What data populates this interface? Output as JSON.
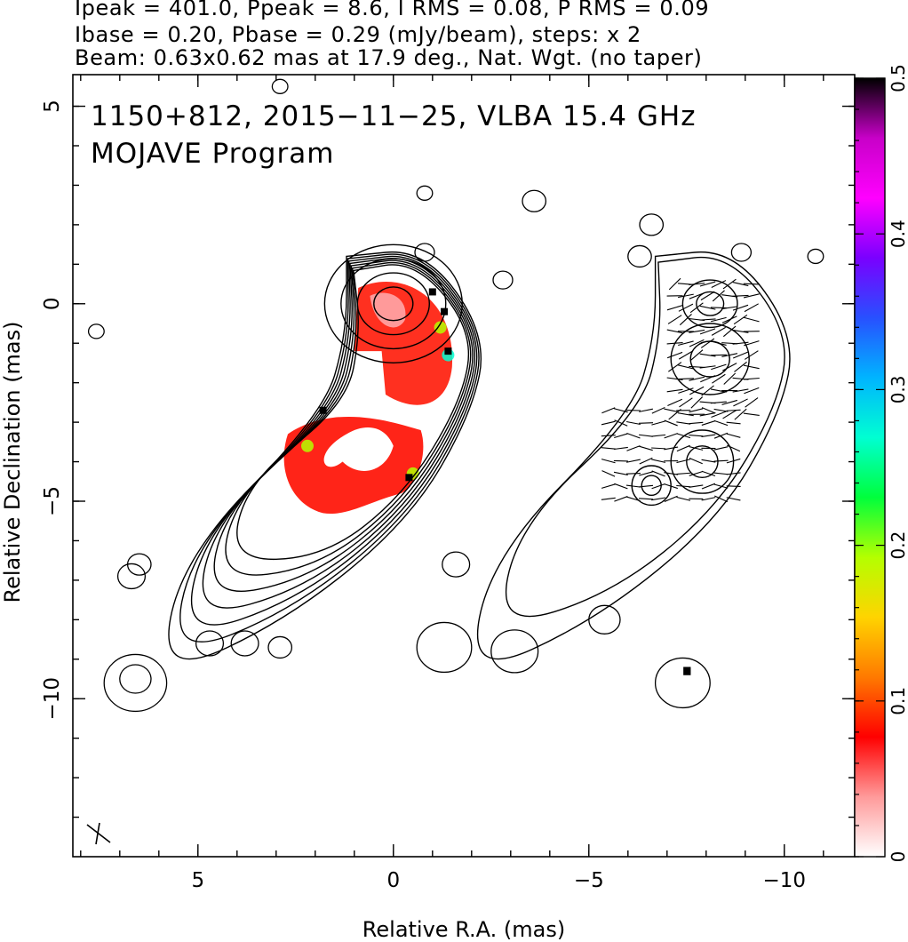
{
  "header": {
    "line1": "Ipeak = 401.0, Ppeak = 8.6, I RMS = 0.08, P RMS = 0.09",
    "line2": "Ibase = 0.20, Pbase = 0.29 (mJy/beam), steps: x 2",
    "line3": "Beam: 0.63x0.62 mas at 17.9 deg., Nat. Wgt. (no taper)"
  },
  "panel": {
    "title": "1150+812, 2015−11−25, VLBA 15.4 GHz",
    "subtitle": "MOJAVE Program"
  },
  "colors": {
    "contour": "#000000",
    "frame": "#000000",
    "polarization_core": "#ff1a1a",
    "polarization_pale": "#ff9a9a"
  },
  "chart_data": {
    "type": "heatmap",
    "xlabel": "Relative R.A. (mas)",
    "ylabel": "Relative Declination (mas)",
    "xlim": [
      8.2,
      -11.8
    ],
    "ylim": [
      -14.0,
      5.8
    ],
    "x_ticks": [
      5,
      0,
      -5,
      -10
    ],
    "x_tick_labels": [
      "5",
      "0",
      "−5",
      "−10"
    ],
    "y_ticks": [
      5,
      0,
      -5,
      -10
    ],
    "y_tick_labels": [
      "5",
      "0",
      "−5",
      "−10"
    ],
    "colorbar": {
      "range": [
        0,
        0.5
      ],
      "ticks": [
        0,
        0.1,
        0.2,
        0.3,
        0.4,
        0.5
      ],
      "tick_labels": [
        "0",
        "0.1",
        "0.2",
        "0.3",
        "0.4",
        "0.5"
      ],
      "stops": [
        "#ffffff",
        "#ff9a9a",
        "#ff0000",
        "#ff7a00",
        "#ffd400",
        "#b4ff00",
        "#00ff3c",
        "#00ffd2",
        "#00b4ff",
        "#2850ff",
        "#7a00ff",
        "#ff00ff",
        "#c800c8",
        "#000000"
      ]
    },
    "contour_levels_mJy_per_beam": [
      0.2,
      0.4,
      0.8,
      1.6,
      3.2,
      6.4,
      12.8,
      25.6,
      51.2,
      102.4,
      204.8
    ],
    "peak_intensity_mJy_per_beam": 401.0,
    "peak_position": [
      0,
      0
    ],
    "beam": {
      "major_mas": 0.63,
      "minor_mas": 0.62,
      "pa_deg": 17.9
    },
    "left_panel_center_ra": 0,
    "right_panel_center_ra": -7.9,
    "right_panel_ra_offset_mas": -7.9,
    "fractional_polarization_regions": [
      {
        "ra": 0.0,
        "dec": 0.0,
        "value": 0.05
      },
      {
        "ra": -0.6,
        "dec": -1.4,
        "value": 0.08
      },
      {
        "ra": -1.2,
        "dec": -0.6,
        "value": 0.2
      },
      {
        "ra": -1.4,
        "dec": -1.3,
        "value": 0.25
      },
      {
        "ra": 1.6,
        "dec": -4.2,
        "value": 0.08
      },
      {
        "ra": 0.8,
        "dec": -3.8,
        "value": 0.04
      },
      {
        "ra": 2.2,
        "dec": -3.6,
        "value": 0.18
      },
      {
        "ra": -0.5,
        "dec": -4.3,
        "value": 0.2
      }
    ]
  }
}
